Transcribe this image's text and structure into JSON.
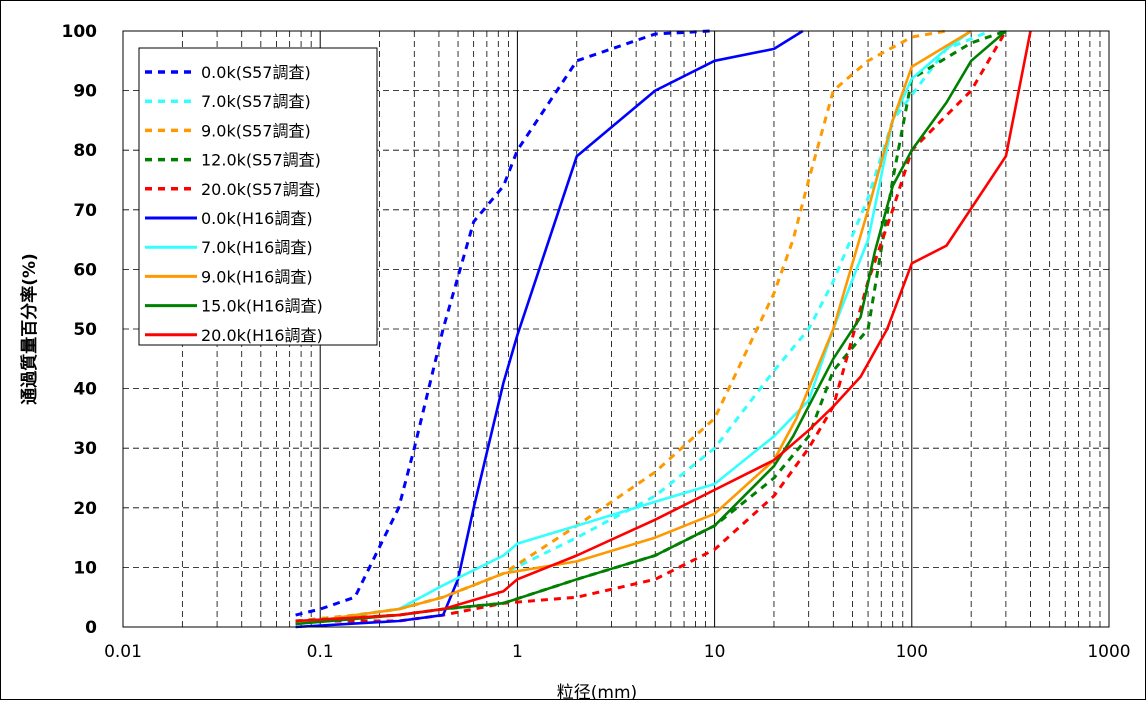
{
  "chart_data": {
    "type": "line",
    "title": "",
    "xlabel": "粒径(mm)",
    "ylabel": "通過質量百分率(%)",
    "x_scale": "log",
    "xlim": [
      0.01,
      1000
    ],
    "ylim": [
      0,
      100
    ],
    "x_ticks": [
      "0.01",
      "0.1",
      "1",
      "10",
      "100",
      "1000"
    ],
    "y_ticks": [
      "0",
      "10",
      "20",
      "30",
      "40",
      "50",
      "60",
      "70",
      "80",
      "90",
      "100"
    ],
    "grid": true,
    "legend_position": "top-left",
    "series": [
      {
        "name": "0.0k(S57調査)",
        "color": "#0000ff",
        "dash": true,
        "x": [
          0.075,
          0.1,
          0.15,
          0.25,
          0.3,
          0.42,
          0.6,
          0.85,
          1.0,
          2.0,
          3.0,
          5.0,
          9.5
        ],
        "y": [
          2,
          3,
          5,
          20,
          30,
          50,
          68,
          74,
          80,
          95,
          97,
          99.5,
          100
        ]
      },
      {
        "name": "7.0k(S57調査)",
        "color": "#33ffff",
        "dash": true,
        "x": [
          0.075,
          0.15,
          0.25,
          0.42,
          0.85,
          2.0,
          5.0,
          10.0,
          20.0,
          30.0,
          40.0,
          60.0,
          80.0,
          150.0,
          250.0
        ],
        "y": [
          1,
          2,
          3,
          5,
          9,
          15,
          22,
          30,
          43,
          50,
          58,
          72,
          85,
          97,
          100
        ]
      },
      {
        "name": "9.0k(S57調査)",
        "color": "#ff9900",
        "dash": true,
        "x": [
          0.075,
          0.15,
          0.25,
          0.42,
          0.85,
          2.0,
          5.0,
          10.0,
          20.0,
          25.0,
          30.0,
          40.0,
          60.0,
          100.0,
          150.0
        ],
        "y": [
          1,
          2,
          3,
          5,
          9,
          17,
          26,
          35,
          56,
          65,
          75,
          90,
          95,
          99,
          100
        ]
      },
      {
        "name": "12.0k(S57調査)",
        "color": "#008000",
        "dash": true,
        "x": [
          0.075,
          0.25,
          0.42,
          0.85,
          2.0,
          5.0,
          10.0,
          20.0,
          30.0,
          40.0,
          60.0,
          80.0,
          100.0,
          200.0,
          300.0
        ],
        "y": [
          1,
          2,
          3,
          4,
          8,
          12,
          17,
          25,
          32,
          43,
          50,
          75,
          92,
          98,
          100
        ]
      },
      {
        "name": "20.0k(S57調査)",
        "color": "#ff0000",
        "dash": true,
        "x": [
          0.075,
          0.25,
          0.42,
          0.85,
          2.0,
          5.0,
          10.0,
          20.0,
          30.0,
          40.0,
          60.0,
          80.0,
          100.0,
          200.0,
          300.0
        ],
        "y": [
          1,
          1,
          2,
          4,
          5,
          8,
          13,
          22,
          30,
          37,
          58,
          70,
          80,
          90,
          100
        ]
      },
      {
        "name": "0.0k(H16調査)",
        "color": "#0000ff",
        "dash": false,
        "x": [
          0.075,
          0.25,
          0.42,
          0.5,
          0.6,
          0.85,
          1.0,
          2.0,
          5.0,
          10.0,
          20.0,
          28.0
        ],
        "y": [
          0,
          1,
          2,
          8,
          20,
          41,
          49,
          79,
          90,
          95,
          97,
          100
        ]
      },
      {
        "name": "7.0k(H16調査)",
        "color": "#33ffff",
        "dash": false,
        "x": [
          0.075,
          0.15,
          0.25,
          0.42,
          0.85,
          1.0,
          2.0,
          5.0,
          10.0,
          20.0,
          30.0,
          40.0,
          60.0,
          80.0,
          100.0,
          150.0,
          200.0
        ],
        "y": [
          0.5,
          2,
          3,
          7,
          12,
          14,
          17,
          21,
          24,
          32,
          38,
          50,
          65,
          85,
          92,
          97,
          100
        ]
      },
      {
        "name": "9.0k(H16調査)",
        "color": "#ff9900",
        "dash": false,
        "x": [
          0.075,
          0.15,
          0.25,
          0.42,
          0.85,
          2.0,
          5.0,
          10.0,
          20.0,
          26.0,
          40.0,
          60.0,
          80.0,
          100.0,
          200.0
        ],
        "y": [
          0.5,
          2,
          3,
          5,
          9,
          11,
          15,
          19,
          28,
          35,
          50,
          70,
          85,
          94,
          100
        ]
      },
      {
        "name": "15.0k(H16調査)",
        "color": "#008000",
        "dash": false,
        "x": [
          0.075,
          0.25,
          0.42,
          0.85,
          2.0,
          5.0,
          10.0,
          20.0,
          25.0,
          40.0,
          55.0,
          65.0,
          80.0,
          100.0,
          150.0,
          200.0,
          300.0
        ],
        "y": [
          0.5,
          2,
          3,
          4,
          8,
          12,
          17,
          27,
          32,
          45,
          52,
          63,
          74,
          80,
          88,
          95,
          100
        ]
      },
      {
        "name": "20.0k(H16調査)",
        "color": "#ff0000",
        "dash": false,
        "x": [
          0.075,
          0.25,
          0.42,
          0.85,
          1.0,
          2.0,
          5.0,
          10.0,
          20.0,
          30.0,
          40.0,
          55.0,
          75.0,
          100.0,
          150.0,
          300.0,
          400.0
        ],
        "y": [
          1,
          2,
          3,
          6,
          8,
          12,
          18,
          23,
          28,
          33,
          37,
          42,
          50,
          61,
          64,
          79,
          100
        ]
      }
    ]
  }
}
